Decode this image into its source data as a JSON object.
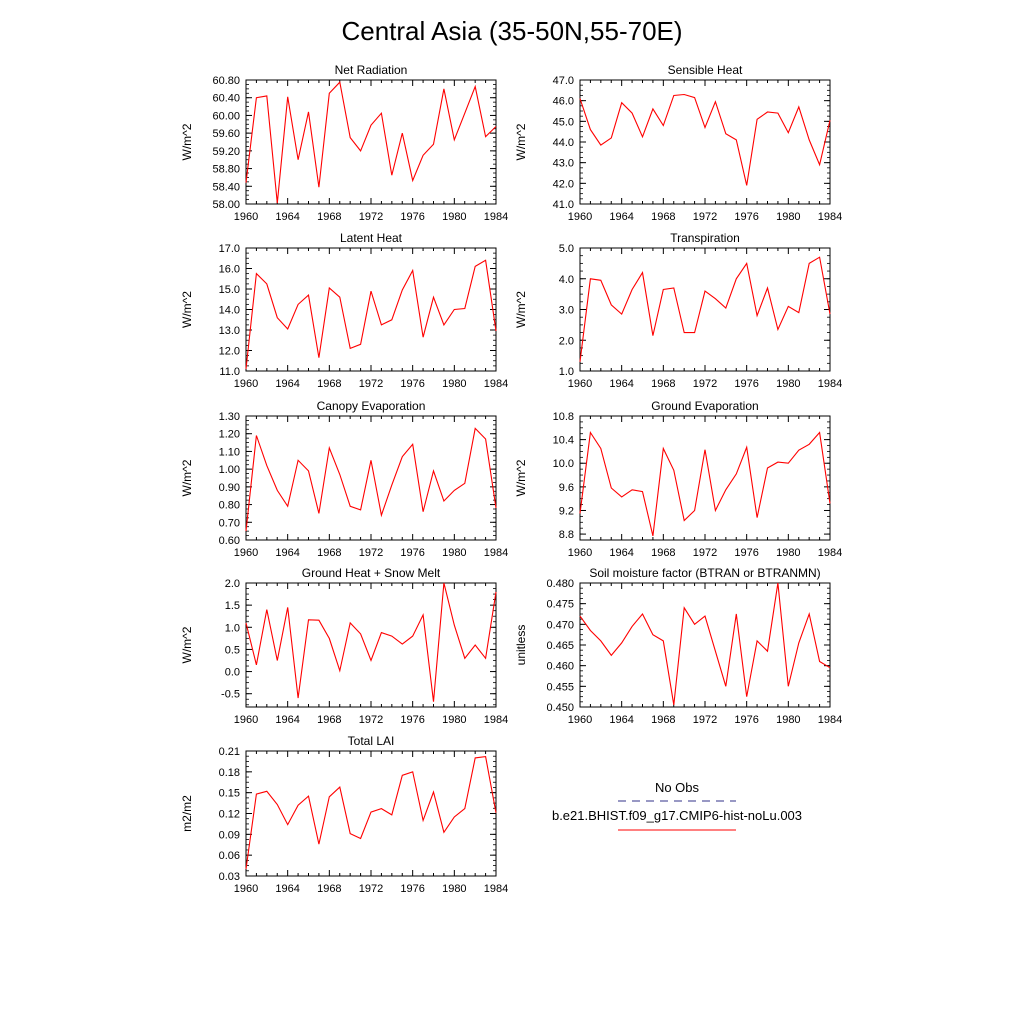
{
  "figure": {
    "title": "Central Asia (35-50N,55-70E)"
  },
  "legend": {
    "entries": [
      {
        "label": "No Obs",
        "color": "#5a5aa0",
        "dash": true
      },
      {
        "label": "b.e21.BHIST.f09_g17.CMIP6-hist-noLu.003",
        "color": "#ff0000",
        "dash": false
      }
    ]
  },
  "colors": {
    "model": "#ff0000",
    "obs": "#5a5aa0"
  },
  "chart_data": [
    {
      "type": "line",
      "title": "Net Radiation",
      "ylabel": "W/m^2",
      "xlim": [
        1960,
        1984
      ],
      "ylim": [
        58.0,
        60.8
      ],
      "xticks": [
        1960,
        1964,
        1968,
        1972,
        1976,
        1980,
        1984
      ],
      "yticks": [
        "58.00",
        "58.40",
        "58.80",
        "59.20",
        "59.60",
        "60.00",
        "60.40",
        "60.80"
      ],
      "series": [
        {
          "name": "b.e21.BHIST.f09_g17.CMIP6-hist-noLu.003",
          "x": [
            1960,
            1961,
            1962,
            1963,
            1964,
            1965,
            1966,
            1967,
            1968,
            1969,
            1970,
            1971,
            1972,
            1973,
            1974,
            1975,
            1976,
            1977,
            1978,
            1979,
            1980,
            1981,
            1982,
            1983,
            1984
          ],
          "values": [
            58.48,
            60.4,
            60.44,
            58.02,
            60.42,
            59.0,
            60.08,
            58.38,
            60.5,
            60.75,
            59.5,
            59.2,
            59.78,
            60.05,
            58.65,
            59.6,
            58.53,
            59.1,
            59.35,
            60.6,
            59.45,
            60.05,
            60.65,
            59.52,
            59.75
          ]
        }
      ]
    },
    {
      "type": "line",
      "title": "Sensible Heat",
      "ylabel": "W/m^2",
      "xlim": [
        1960,
        1984
      ],
      "ylim": [
        41.0,
        47.0
      ],
      "xticks": [
        1960,
        1964,
        1968,
        1972,
        1976,
        1980,
        1984
      ],
      "yticks": [
        "41.0",
        "42.0",
        "43.0",
        "44.0",
        "45.0",
        "46.0",
        "47.0"
      ],
      "series": [
        {
          "name": "b.e21.BHIST.f09_g17.CMIP6-hist-noLu.003",
          "x": [
            1960,
            1961,
            1962,
            1963,
            1964,
            1965,
            1966,
            1967,
            1968,
            1969,
            1970,
            1971,
            1972,
            1973,
            1974,
            1975,
            1976,
            1977,
            1978,
            1979,
            1980,
            1981,
            1982,
            1983,
            1984
          ],
          "values": [
            46.1,
            44.6,
            43.85,
            44.2,
            45.9,
            45.4,
            44.25,
            45.6,
            44.8,
            46.25,
            46.3,
            46.15,
            44.7,
            45.95,
            44.4,
            44.1,
            41.9,
            45.1,
            45.45,
            45.4,
            44.45,
            45.7,
            44.1,
            42.9,
            45.05
          ]
        }
      ]
    },
    {
      "type": "line",
      "title": "Latent Heat",
      "ylabel": "W/m^2",
      "xlim": [
        1960,
        1984
      ],
      "ylim": [
        11.0,
        17.0
      ],
      "xticks": [
        1960,
        1964,
        1968,
        1972,
        1976,
        1980,
        1984
      ],
      "yticks": [
        "11.0",
        "12.0",
        "13.0",
        "14.0",
        "15.0",
        "16.0",
        "17.0"
      ],
      "series": [
        {
          "name": "b.e21.BHIST.f09_g17.CMIP6-hist-noLu.003",
          "x": [
            1960,
            1961,
            1962,
            1963,
            1964,
            1965,
            1966,
            1967,
            1968,
            1969,
            1970,
            1971,
            1972,
            1973,
            1974,
            1975,
            1976,
            1977,
            1978,
            1979,
            1980,
            1981,
            1982,
            1983,
            1984
          ],
          "values": [
            11.1,
            15.75,
            15.25,
            13.6,
            13.05,
            14.25,
            14.7,
            11.65,
            15.05,
            14.6,
            12.1,
            12.3,
            14.9,
            13.25,
            13.5,
            14.95,
            15.9,
            12.65,
            14.6,
            13.25,
            14.0,
            14.05,
            16.1,
            16.4,
            12.95
          ]
        }
      ]
    },
    {
      "type": "line",
      "title": "Transpiration",
      "ylabel": "W/m^2",
      "xlim": [
        1960,
        1984
      ],
      "ylim": [
        1.0,
        5.0
      ],
      "xticks": [
        1960,
        1964,
        1968,
        1972,
        1976,
        1980,
        1984
      ],
      "yticks": [
        "1.0",
        "2.0",
        "3.0",
        "4.0",
        "5.0"
      ],
      "series": [
        {
          "name": "b.e21.BHIST.f09_g17.CMIP6-hist-noLu.003",
          "x": [
            1960,
            1961,
            1962,
            1963,
            1964,
            1965,
            1966,
            1967,
            1968,
            1969,
            1970,
            1971,
            1972,
            1973,
            1974,
            1975,
            1976,
            1977,
            1978,
            1979,
            1980,
            1981,
            1982,
            1983,
            1984
          ],
          "values": [
            1.3,
            4.0,
            3.95,
            3.15,
            2.85,
            3.65,
            4.2,
            2.15,
            3.65,
            3.7,
            2.25,
            2.25,
            3.6,
            3.35,
            3.05,
            4.0,
            4.5,
            2.8,
            3.7,
            2.35,
            3.1,
            2.9,
            4.5,
            4.7,
            2.85
          ]
        }
      ]
    },
    {
      "type": "line",
      "title": "Canopy Evaporation",
      "ylabel": "W/m^2",
      "xlim": [
        1960,
        1984
      ],
      "ylim": [
        0.6,
        1.3
      ],
      "xticks": [
        1960,
        1964,
        1968,
        1972,
        1976,
        1980,
        1984
      ],
      "yticks": [
        "0.60",
        "0.70",
        "0.80",
        "0.90",
        "1.00",
        "1.10",
        "1.20",
        "1.30"
      ],
      "series": [
        {
          "name": "b.e21.BHIST.f09_g17.CMIP6-hist-noLu.003",
          "x": [
            1960,
            1961,
            1962,
            1963,
            1964,
            1965,
            1966,
            1967,
            1968,
            1969,
            1970,
            1971,
            1972,
            1973,
            1974,
            1975,
            1976,
            1977,
            1978,
            1979,
            1980,
            1981,
            1982,
            1983,
            1984
          ],
          "values": [
            0.65,
            1.19,
            1.02,
            0.88,
            0.79,
            1.05,
            0.99,
            0.75,
            1.12,
            0.97,
            0.79,
            0.77,
            1.05,
            0.74,
            0.91,
            1.07,
            1.14,
            0.76,
            0.99,
            0.82,
            0.88,
            0.92,
            1.23,
            1.17,
            0.78
          ]
        }
      ]
    },
    {
      "type": "line",
      "title": "Ground Evaporation",
      "ylabel": "W/m^2",
      "xlim": [
        1960,
        1984
      ],
      "ylim": [
        8.7,
        10.8
      ],
      "xticks": [
        1960,
        1964,
        1968,
        1972,
        1976,
        1980,
        1984
      ],
      "yticks": [
        "8.8",
        "9.2",
        "9.6",
        "10.0",
        "10.4",
        "10.8"
      ],
      "series": [
        {
          "name": "b.e21.BHIST.f09_g17.CMIP6-hist-noLu.003",
          "x": [
            1960,
            1961,
            1962,
            1963,
            1964,
            1965,
            1966,
            1967,
            1968,
            1969,
            1970,
            1971,
            1972,
            1973,
            1974,
            1975,
            1976,
            1977,
            1978,
            1979,
            1980,
            1981,
            1982,
            1983,
            1984
          ],
          "values": [
            9.15,
            10.52,
            10.25,
            9.58,
            9.43,
            9.55,
            9.52,
            8.77,
            10.25,
            9.88,
            9.03,
            9.2,
            10.23,
            9.2,
            9.55,
            9.82,
            10.27,
            9.08,
            9.92,
            10.02,
            10.0,
            10.22,
            10.32,
            10.52,
            9.32
          ]
        }
      ]
    },
    {
      "type": "line",
      "title": "Ground Heat + Snow Melt",
      "ylabel": "W/m^2",
      "xlim": [
        1960,
        1984
      ],
      "ylim": [
        -0.8,
        2.0
      ],
      "xticks": [
        1960,
        1964,
        1968,
        1972,
        1976,
        1980,
        1984
      ],
      "yticks": [
        "-0.5",
        "0.0",
        "0.5",
        "1.0",
        "1.5",
        "2.0"
      ],
      "series": [
        {
          "name": "b.e21.BHIST.f09_g17.CMIP6-hist-noLu.003",
          "x": [
            1960,
            1961,
            1962,
            1963,
            1964,
            1965,
            1966,
            1967,
            1968,
            1969,
            1970,
            1971,
            1972,
            1973,
            1974,
            1975,
            1976,
            1977,
            1978,
            1979,
            1980,
            1981,
            1982,
            1983,
            1984
          ],
          "values": [
            1.1,
            0.15,
            1.4,
            0.25,
            1.45,
            -0.6,
            1.17,
            1.16,
            0.75,
            0.02,
            1.1,
            0.85,
            0.25,
            0.88,
            0.8,
            0.62,
            0.8,
            1.28,
            -0.68,
            2.0,
            1.05,
            0.3,
            0.6,
            0.3,
            1.8
          ]
        }
      ]
    },
    {
      "type": "line",
      "title": "Soil moisture factor (BTRAN or BTRANMN)",
      "ylabel": "unitless",
      "xlim": [
        1960,
        1984
      ],
      "ylim": [
        0.45,
        0.48
      ],
      "xticks": [
        1960,
        1964,
        1968,
        1972,
        1976,
        1980,
        1984
      ],
      "yticks": [
        "0.450",
        "0.455",
        "0.460",
        "0.465",
        "0.470",
        "0.475",
        "0.480"
      ],
      "series": [
        {
          "name": "b.e21.BHIST.f09_g17.CMIP6-hist-noLu.003",
          "x": [
            1960,
            1961,
            1962,
            1963,
            1964,
            1965,
            1966,
            1967,
            1968,
            1969,
            1970,
            1971,
            1972,
            1973,
            1974,
            1975,
            1976,
            1977,
            1978,
            1979,
            1980,
            1981,
            1982,
            1983,
            1984
          ],
          "values": [
            0.472,
            0.4685,
            0.466,
            0.4625,
            0.4655,
            0.4695,
            0.4725,
            0.4675,
            0.466,
            0.4505,
            0.474,
            0.47,
            0.472,
            0.4635,
            0.455,
            0.4725,
            0.4525,
            0.466,
            0.4635,
            0.48,
            0.455,
            0.4655,
            0.4725,
            0.461,
            0.4595
          ]
        }
      ]
    },
    {
      "type": "line",
      "title": "Total LAI",
      "ylabel": "m2/m2",
      "xlim": [
        1960,
        1984
      ],
      "ylim": [
        0.03,
        0.21
      ],
      "xticks": [
        1960,
        1964,
        1968,
        1972,
        1976,
        1980,
        1984
      ],
      "yticks": [
        "0.03",
        "0.06",
        "0.09",
        "0.12",
        "0.15",
        "0.18",
        "0.21"
      ],
      "series": [
        {
          "name": "b.e21.BHIST.f09_g17.CMIP6-hist-noLu.003",
          "x": [
            1960,
            1961,
            1962,
            1963,
            1964,
            1965,
            1966,
            1967,
            1968,
            1969,
            1970,
            1971,
            1972,
            1973,
            1974,
            1975,
            1976,
            1977,
            1978,
            1979,
            1980,
            1981,
            1982,
            1983,
            1984
          ],
          "values": [
            0.04,
            0.148,
            0.152,
            0.133,
            0.104,
            0.132,
            0.145,
            0.076,
            0.144,
            0.158,
            0.091,
            0.084,
            0.122,
            0.127,
            0.118,
            0.175,
            0.18,
            0.11,
            0.151,
            0.093,
            0.115,
            0.127,
            0.2,
            0.202,
            0.121
          ]
        }
      ]
    }
  ]
}
